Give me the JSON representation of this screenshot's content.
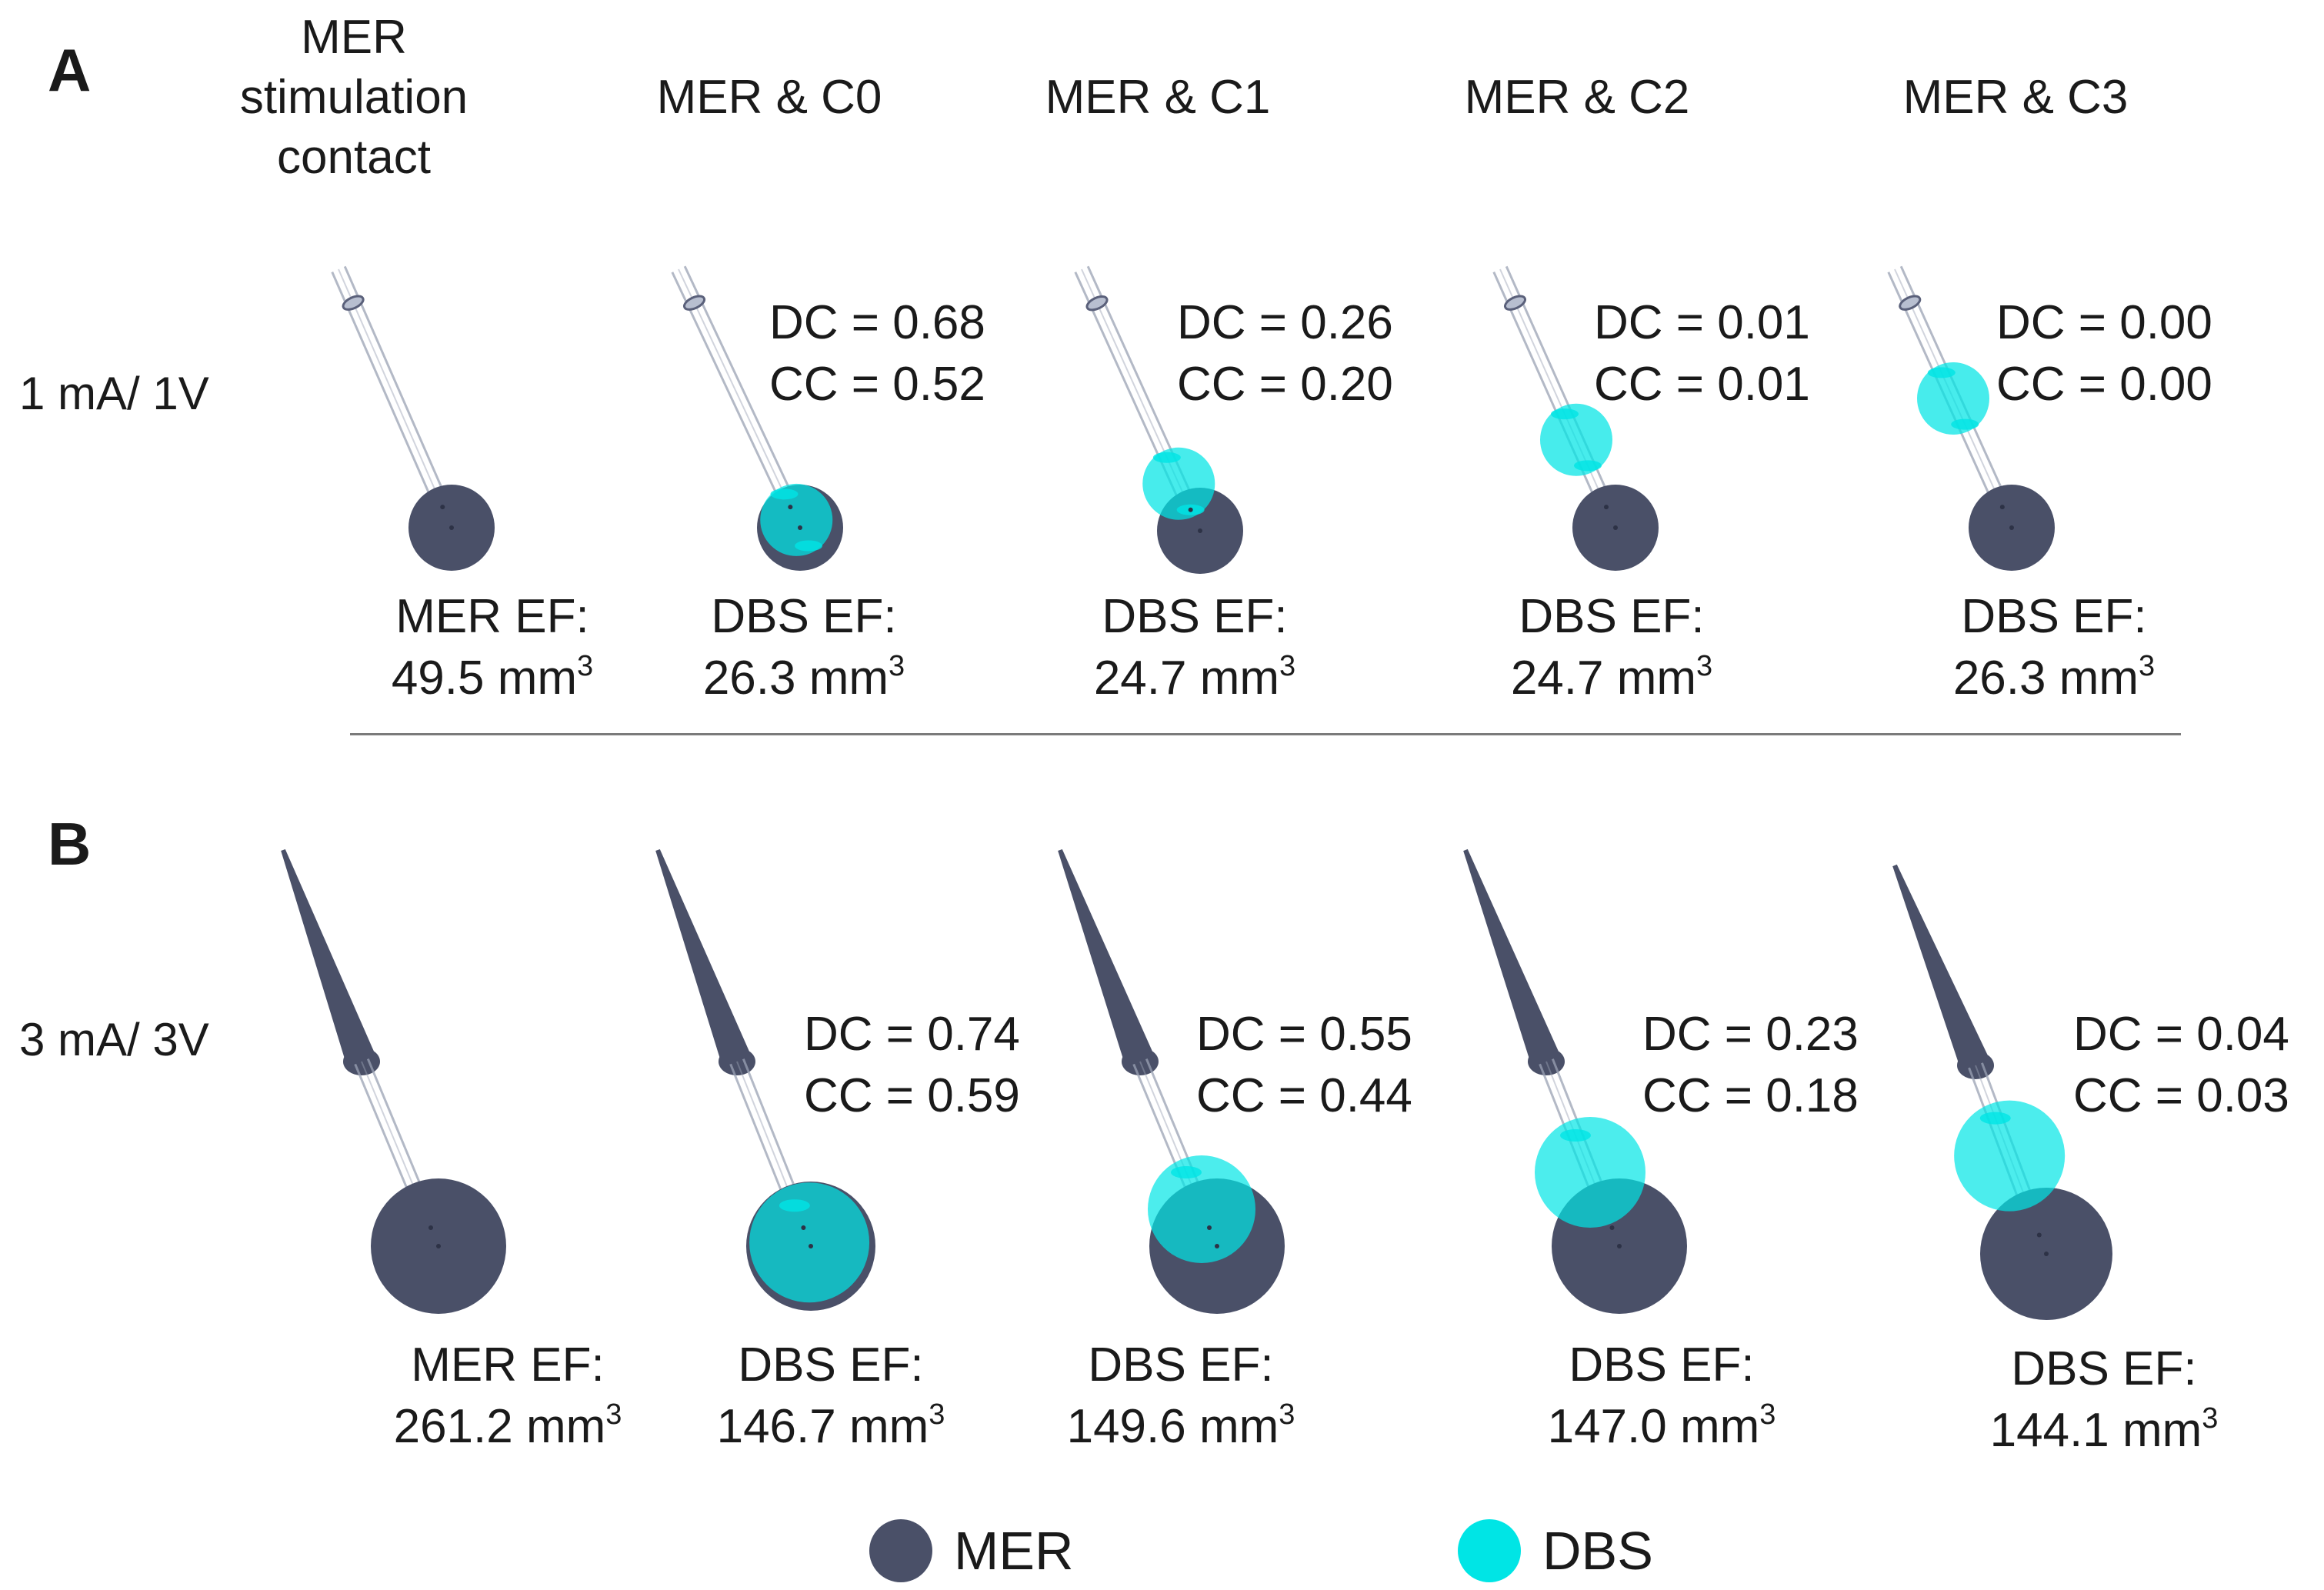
{
  "panels": [
    {
      "letter": "A",
      "condition": "1 mA/ 1V"
    },
    {
      "letter": "B",
      "condition": "3 mA/ 3V"
    }
  ],
  "column_headers": [
    "MER\nstimulation\ncontact",
    "MER & C0",
    "MER & C1",
    "MER & C2",
    "MER & C3"
  ],
  "rows": [
    {
      "cells": [
        {
          "ef_label": "MER EF:",
          "ef_value": "49.5 mm",
          "dc": "",
          "cc": "",
          "dbs_contact": null
        },
        {
          "ef_label": "DBS EF:",
          "ef_value": "26.3 mm",
          "dc": "DC = 0.68",
          "cc": "CC = 0.52",
          "dbs_contact": 0
        },
        {
          "ef_label": "DBS EF:",
          "ef_value": "24.7 mm",
          "dc": "DC = 0.26",
          "cc": "CC = 0.20",
          "dbs_contact": 1
        },
        {
          "ef_label": "DBS EF:",
          "ef_value": "24.7 mm",
          "dc": "DC = 0.01",
          "cc": "CC = 0.01",
          "dbs_contact": 2
        },
        {
          "ef_label": "DBS EF:",
          "ef_value": "26.3 mm",
          "dc": "DC = 0.00",
          "cc": "CC = 0.00",
          "dbs_contact": 3
        }
      ]
    },
    {
      "cells": [
        {
          "ef_label": "MER EF:",
          "ef_value": "261.2 mm",
          "dc": "",
          "cc": "",
          "dbs_contact": null
        },
        {
          "ef_label": "DBS EF:",
          "ef_value": "146.7 mm",
          "dc": "DC = 0.74",
          "cc": "CC = 0.59",
          "dbs_contact": 0
        },
        {
          "ef_label": "DBS EF:",
          "ef_value": "149.6 mm",
          "dc": "DC = 0.55",
          "cc": "CC = 0.44",
          "dbs_contact": 1
        },
        {
          "ef_label": "DBS EF:",
          "ef_value": "147.0 mm",
          "dc": "DC = 0.23",
          "cc": "CC = 0.18",
          "dbs_contact": 2
        },
        {
          "ef_label": "DBS EF:",
          "ef_value": "144.1 mm",
          "dc": "DC = 0.04",
          "cc": "CC = 0.03",
          "dbs_contact": 3
        }
      ]
    }
  ],
  "unit_exponent": "3",
  "legend": [
    {
      "label": "MER",
      "color": "#4a5068"
    },
    {
      "label": "DBS",
      "color": "#00e5e5"
    }
  ],
  "colors": {
    "mer": "#4a5068",
    "dbs": "#00e5e5",
    "lead": "#9aa2b4"
  }
}
